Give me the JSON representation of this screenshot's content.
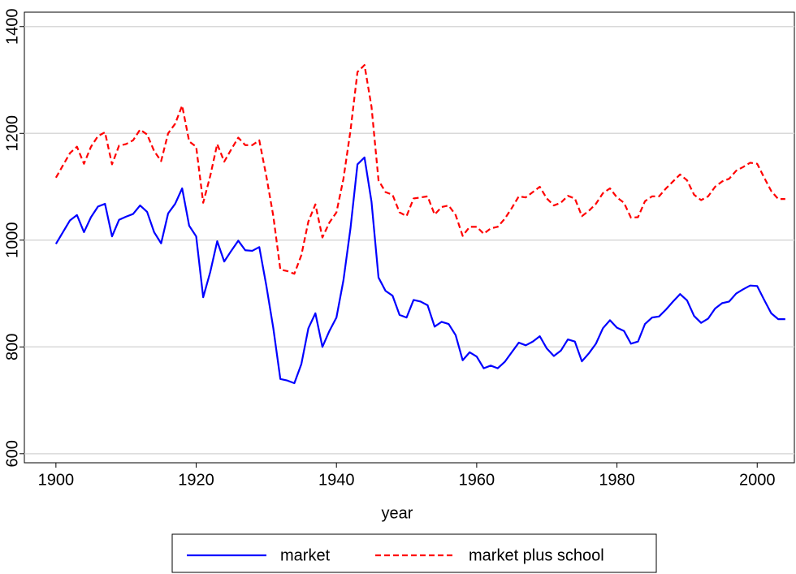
{
  "chart_data": {
    "type": "line",
    "xlabel": "year",
    "x": [
      1900,
      1901,
      1902,
      1903,
      1904,
      1905,
      1906,
      1907,
      1908,
      1909,
      1910,
      1911,
      1912,
      1913,
      1914,
      1915,
      1916,
      1917,
      1918,
      1919,
      1920,
      1921,
      1922,
      1923,
      1924,
      1925,
      1926,
      1927,
      1928,
      1929,
      1930,
      1931,
      1932,
      1933,
      1934,
      1935,
      1936,
      1937,
      1938,
      1939,
      1940,
      1941,
      1942,
      1943,
      1944,
      1945,
      1946,
      1947,
      1948,
      1949,
      1950,
      1951,
      1952,
      1953,
      1954,
      1955,
      1956,
      1957,
      1958,
      1959,
      1960,
      1961,
      1962,
      1963,
      1964,
      1965,
      1966,
      1967,
      1968,
      1969,
      1970,
      1971,
      1972,
      1973,
      1974,
      1975,
      1976,
      1977,
      1978,
      1979,
      1980,
      1981,
      1982,
      1983,
      1984,
      1985,
      1986,
      1987,
      1988,
      1989,
      1990,
      1991,
      1992,
      1993,
      1994,
      1995,
      1996,
      1997,
      1998,
      1999,
      2000,
      2001,
      2002,
      2003,
      2004
    ],
    "series": [
      {
        "name": "market",
        "color": "#0000ff",
        "dash": false,
        "values": [
          993,
          1015,
          1037,
          1047,
          1015,
          1043,
          1063,
          1068,
          1007,
          1038,
          1044,
          1049,
          1065,
          1053,
          1015,
          994,
          1050,
          1068,
          1097,
          1027,
          1007,
          893,
          940,
          998,
          960,
          980,
          999,
          981,
          980,
          987,
          915,
          835,
          740,
          737,
          732,
          768,
          835,
          863,
          800,
          830,
          855,
          925,
          1022,
          1142,
          1155,
          1072,
          930,
          905,
          896,
          860,
          855,
          888,
          885,
          878,
          838,
          847,
          843,
          822,
          775,
          790,
          782,
          760,
          765,
          760,
          772,
          790,
          808,
          803,
          810,
          820,
          797,
          783,
          793,
          814,
          810,
          773,
          788,
          806,
          835,
          850,
          836,
          830,
          806,
          810,
          843,
          855,
          857,
          870,
          885,
          899,
          887,
          858,
          845,
          853,
          872,
          882,
          885,
          900,
          908,
          915,
          914,
          888,
          863,
          852,
          852
        ]
      },
      {
        "name": "market plus school",
        "color": "#ff0000",
        "dash": true,
        "values": [
          1117,
          1140,
          1163,
          1175,
          1143,
          1175,
          1195,
          1202,
          1142,
          1177,
          1180,
          1187,
          1207,
          1198,
          1167,
          1148,
          1200,
          1218,
          1252,
          1185,
          1175,
          1070,
          1120,
          1180,
          1147,
          1170,
          1192,
          1178,
          1178,
          1187,
          1120,
          1045,
          945,
          942,
          937,
          972,
          1035,
          1067,
          1005,
          1033,
          1052,
          1115,
          1205,
          1315,
          1328,
          1250,
          1112,
          1090,
          1085,
          1052,
          1045,
          1078,
          1080,
          1082,
          1048,
          1062,
          1065,
          1047,
          1008,
          1025,
          1025,
          1012,
          1022,
          1025,
          1040,
          1060,
          1082,
          1080,
          1090,
          1100,
          1078,
          1065,
          1070,
          1083,
          1078,
          1045,
          1055,
          1068,
          1088,
          1097,
          1080,
          1070,
          1042,
          1043,
          1073,
          1082,
          1082,
          1097,
          1110,
          1123,
          1112,
          1085,
          1075,
          1082,
          1100,
          1110,
          1115,
          1130,
          1137,
          1145,
          1143,
          1117,
          1092,
          1077,
          1077
        ]
      }
    ],
    "xlim": [
      1895.5,
      2005.3
    ],
    "ylim": [
      583,
      1427
    ],
    "xticks": [
      1900,
      1920,
      1940,
      1960,
      1980,
      2000
    ],
    "yticks": [
      600,
      800,
      1000,
      1200,
      1400
    ],
    "grid": true,
    "legend": "bottom"
  }
}
